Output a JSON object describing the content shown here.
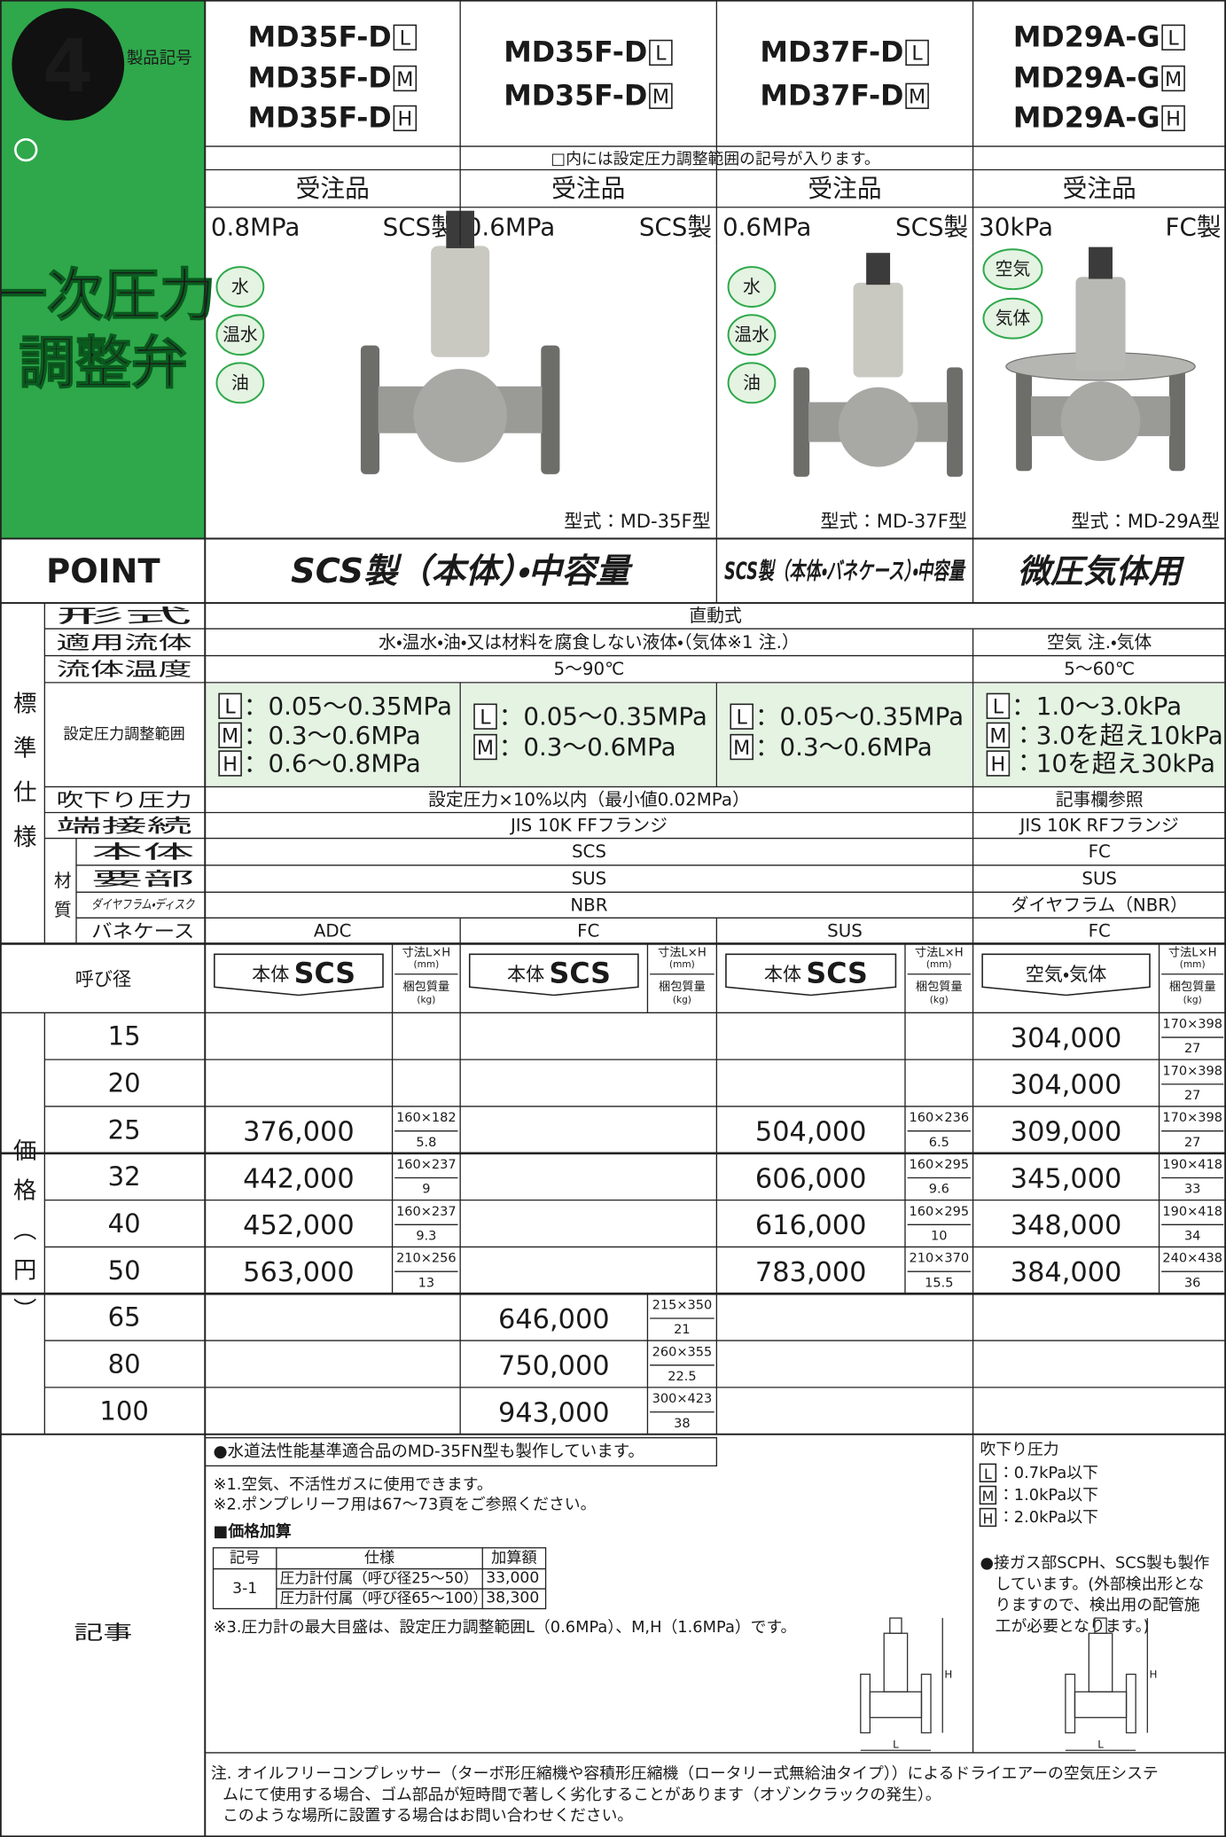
{
  "header": {
    "number": "4",
    "label": "製品記号",
    "title_lines": [
      "一次圧力",
      "調整弁"
    ],
    "code_note": "□内には設定圧力調整範囲の記号が入ります。"
  },
  "products": [
    {
      "models": [
        {
          "name": "MD35F-D",
          "code": "L"
        },
        {
          "name": "MD35F-D",
          "code": "M"
        },
        {
          "name": "MD35F-D",
          "code": "H"
        }
      ],
      "order": "受注品",
      "pressure": "0.8MPa",
      "material": "SCS製",
      "fluids": [
        "水",
        "温水",
        "油"
      ]
    },
    {
      "models": [
        {
          "name": "MD35F-D",
          "code": "L"
        },
        {
          "name": "MD35F-D",
          "code": "M"
        }
      ],
      "order": "受注品",
      "pressure": "0.6MPa",
      "material": "SCS製",
      "caption": "型式：MD-35F型"
    },
    {
      "models": [
        {
          "name": "MD37F-D",
          "code": "L"
        },
        {
          "name": "MD37F-D",
          "code": "M"
        }
      ],
      "order": "受注品",
      "pressure": "0.6MPa",
      "material": "SCS製",
      "fluids": [
        "水",
        "温水",
        "油"
      ],
      "caption": "型式：MD-37F型"
    },
    {
      "models": [
        {
          "name": "MD29A-G",
          "code": "L"
        },
        {
          "name": "MD29A-G",
          "code": "M"
        },
        {
          "name": "MD29A-G",
          "code": "H"
        }
      ],
      "order": "受注品",
      "pressure": "30kPa",
      "material": "FC製",
      "fluids": [
        "空気",
        "気体"
      ],
      "caption": "型式：MD-29A型"
    }
  ],
  "point": {
    "label": "POINT",
    "items": [
      "SCS製（本体）・中容量",
      "SCS製（本体・バネケース）・中容量",
      "微圧気体用"
    ]
  },
  "specs": {
    "group_label": "標準仕様",
    "material_label": "材質",
    "rows": [
      {
        "label": "形式",
        "cells": [
          "直動式"
        ]
      },
      {
        "label": "適用流体",
        "cells": [
          "水・温水・油・又は材料を腐食しない液体・（気体※1 注.）",
          "空気 注.・気体"
        ]
      },
      {
        "label": "流体温度",
        "cells": [
          "5〜90℃",
          "5〜60℃"
        ]
      },
      {
        "label": "設定圧力調整範囲",
        "cells": [
          [
            {
              "code": "L",
              "text": "：0.05〜0.35MPa"
            },
            {
              "code": "M",
              "text": "：0.3〜0.6MPa"
            },
            {
              "code": "H",
              "text": "：0.6〜0.8MPa"
            }
          ],
          [
            {
              "code": "L",
              "text": "：0.05〜0.35MPa"
            },
            {
              "code": "M",
              "text": "：0.3〜0.6MPa"
            }
          ],
          [
            {
              "code": "L",
              "text": "：0.05〜0.35MPa"
            },
            {
              "code": "M",
              "text": "：0.3〜0.6MPa"
            }
          ],
          [
            {
              "code": "L",
              "text": "：1.0〜3.0kPa"
            },
            {
              "code": "M",
              "text": "：3.0を超え10kPa"
            },
            {
              "code": "H",
              "text": "：10を超え30kPa"
            }
          ]
        ]
      },
      {
        "label": "吹下り圧力",
        "cells": [
          "設定圧力×10%以内（最小値0.02MPa）",
          "記事欄参照"
        ]
      },
      {
        "label": "端接続",
        "cells": [
          "JIS 10K FFフランジ",
          "JIS 10K RFフランジ"
        ]
      }
    ],
    "material_rows": [
      {
        "label": "本体",
        "cells": [
          "SCS",
          "FC"
        ]
      },
      {
        "label": "要部",
        "cells": [
          "SUS",
          "SUS"
        ]
      },
      {
        "label": "ダイヤフラム・ディスク",
        "cells": [
          "NBR",
          "ダイヤフラム（NBR）"
        ]
      },
      {
        "label": "バネケース",
        "cells": [
          "ADC",
          "FC",
          "SUS",
          "FC"
        ]
      }
    ]
  },
  "price_table": {
    "label": "呼び径",
    "group_label": "価格（円）",
    "dims_header": {
      "dim": "寸法L×H",
      "dim_unit": "(mm)",
      "weight": "梱包質量",
      "weight_unit": "(kg)"
    },
    "columns": [
      {
        "body": "本体",
        "material": "SCS"
      },
      {
        "body": "本体",
        "material": "SCS"
      },
      {
        "body": "本体",
        "material": "SCS"
      },
      {
        "body": "空気・気体"
      }
    ],
    "rows": [
      {
        "size": 15,
        "cells": [
          null,
          null,
          null,
          {
            "price": "304,000",
            "dim": "170×398",
            "weight": "27"
          }
        ]
      },
      {
        "size": 20,
        "cells": [
          null,
          null,
          null,
          {
            "price": "304,000",
            "dim": "170×398",
            "weight": "27"
          }
        ]
      },
      {
        "size": 25,
        "cells": [
          {
            "price": "376,000",
            "dim": "160×182",
            "weight": "5.8"
          },
          null,
          {
            "price": "504,000",
            "dim": "160×236",
            "weight": "6.5"
          },
          {
            "price": "309,000",
            "dim": "170×398",
            "weight": "27"
          }
        ]
      },
      {
        "size": 32,
        "cells": [
          {
            "price": "442,000",
            "dim": "160×237",
            "weight": "9"
          },
          null,
          {
            "price": "606,000",
            "dim": "160×295",
            "weight": "9.6"
          },
          {
            "price": "345,000",
            "dim": "190×418",
            "weight": "33"
          }
        ]
      },
      {
        "size": 40,
        "cells": [
          {
            "price": "452,000",
            "dim": "160×237",
            "weight": "9.3"
          },
          null,
          {
            "price": "616,000",
            "dim": "160×295",
            "weight": "10"
          },
          {
            "price": "348,000",
            "dim": "190×418",
            "weight": "34"
          }
        ]
      },
      {
        "size": 50,
        "cells": [
          {
            "price": "563,000",
            "dim": "210×256",
            "weight": "13"
          },
          null,
          {
            "price": "783,000",
            "dim": "210×370",
            "weight": "15.5"
          },
          {
            "price": "384,000",
            "dim": "240×438",
            "weight": "36"
          }
        ]
      },
      {
        "size": 65,
        "cells": [
          null,
          {
            "price": "646,000",
            "dim": "215×350",
            "weight": "21"
          },
          null,
          null
        ]
      },
      {
        "size": 80,
        "cells": [
          null,
          {
            "price": "750,000",
            "dim": "260×355",
            "weight": "22.5"
          },
          null,
          null
        ]
      },
      {
        "size": 100,
        "cells": [
          null,
          {
            "price": "943,000",
            "dim": "300×423",
            "weight": "38"
          },
          null,
          null
        ]
      }
    ]
  },
  "notes": {
    "label": "記事",
    "highlight": "●水道法性能基準適合品のMD-35FN型も製作しています。",
    "remarks": [
      "※1.空気、不活性ガスに使用できます。",
      "※2.ポンプレリーフ用は67〜73頁をご参照ください。"
    ],
    "addon_title": "■価格加算",
    "addon_table": {
      "headers": [
        "記号",
        "仕様",
        "加算額"
      ],
      "code": "3-1",
      "rows": [
        [
          "圧力計付属（呼び径25〜50）",
          "33,000"
        ],
        [
          "圧力計付属（呼び径65〜100）",
          "38,300"
        ]
      ]
    },
    "remark3": "※3.圧力計の最大目盛は、設定圧力調整範囲L（0.6MPa）、M,H（1.6MPa）です。",
    "blowdown_title": "吹下り圧力",
    "blowdown": [
      {
        "code": "L",
        "text": "：0.7kPa以下"
      },
      {
        "code": "M",
        "text": "：1.0kPa以下"
      },
      {
        "code": "H",
        "text": "：2.0kPa以下"
      }
    ],
    "gas_note": [
      "●接ガス部SCPH、SCS製も製作",
      "しています。(外部検出形とな",
      "りますので、検出用の配管施",
      "工が必要となります。)"
    ],
    "diagram_labels": {
      "h": "H",
      "l": "L"
    },
    "footer": [
      "注. オイルフリーコンプレッサー（ターボ形圧縮機や容積形圧縮機（ロータリー式無給油タイプ））によるドライエアーの空気圧システ",
      "ムにて使用する場合、ゴム部品が短時間で著しく劣化することがあります（オゾンクラックの発生）。",
      "このような場所に設置する場合はお問い合わせください。"
    ]
  }
}
